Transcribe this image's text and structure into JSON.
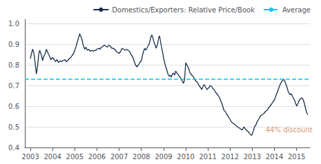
{
  "chart_data": {
    "type": "line",
    "title": "",
    "grid": true,
    "legend": "upper right",
    "xlim": [
      2002.75,
      2015.6
    ],
    "xticks": [
      2003,
      2004,
      2005,
      2006,
      2007,
      2008,
      2009,
      2010,
      2011,
      2012,
      2013,
      2014,
      2015
    ],
    "ylim": [
      0.4,
      1.02
    ],
    "yticks": [
      0.4,
      0.5,
      0.6,
      0.7,
      0.8,
      0.9,
      {
        "value": 1.0,
        "label": "1.0"
      }
    ],
    "x": [
      2003.0,
      2003.05,
      2003.1,
      2003.15,
      2003.2,
      2003.27,
      2003.33,
      2003.38,
      2003.42,
      2003.5,
      2003.55,
      2003.6,
      2003.67,
      2003.72,
      2003.8,
      2003.87,
      2003.92,
      2004.0,
      2004.07,
      2004.13,
      2004.2,
      2004.27,
      2004.33,
      2004.4,
      2004.47,
      2004.55,
      2004.62,
      2004.68,
      2004.75,
      2004.82,
      2004.88,
      2004.95,
      2005.0,
      2005.05,
      2005.1,
      2005.17,
      2005.22,
      2005.28,
      2005.33,
      2005.38,
      2005.45,
      2005.5,
      2005.57,
      2005.63,
      2005.7,
      2005.77,
      2005.83,
      2005.9,
      2005.95,
      2006.0,
      2006.07,
      2006.13,
      2006.2,
      2006.27,
      2006.33,
      2006.4,
      2006.47,
      2006.53,
      2006.6,
      2006.67,
      2006.73,
      2006.8,
      2006.87,
      2006.93,
      2007.0,
      2007.07,
      2007.13,
      2007.2,
      2007.27,
      2007.33,
      2007.4,
      2007.47,
      2007.53,
      2007.6,
      2007.67,
      2007.73,
      2007.8,
      2007.87,
      2007.93,
      2008.0,
      2008.05,
      2008.1,
      2008.15,
      2008.2,
      2008.27,
      2008.33,
      2008.38,
      2008.42,
      2008.47,
      2008.52,
      2008.57,
      2008.62,
      2008.67,
      2008.73,
      2008.78,
      2008.82,
      2008.87,
      2008.92,
      2008.97,
      2009.0,
      2009.05,
      2009.1,
      2009.15,
      2009.2,
      2009.25,
      2009.3,
      2009.35,
      2009.4,
      2009.45,
      2009.5,
      2009.55,
      2009.6,
      2009.65,
      2009.7,
      2009.75,
      2009.8,
      2009.85,
      2009.9,
      2009.95,
      2010.0,
      2010.05,
      2010.1,
      2010.15,
      2010.2,
      2010.27,
      2010.33,
      2010.4,
      2010.47,
      2010.53,
      2010.6,
      2010.67,
      2010.72,
      2010.78,
      2010.83,
      2010.88,
      2010.93,
      2010.97,
      2011.0,
      2011.05,
      2011.1,
      2011.17,
      2011.22,
      2011.28,
      2011.33,
      2011.4,
      2011.47,
      2011.53,
      2011.6,
      2011.67,
      2011.72,
      2011.78,
      2011.83,
      2011.88,
      2011.93,
      2011.97,
      2012.0,
      2012.05,
      2012.1,
      2012.17,
      2012.22,
      2012.28,
      2012.33,
      2012.4,
      2012.47,
      2012.53,
      2012.58,
      2012.63,
      2012.68,
      2012.73,
      2012.78,
      2012.83,
      2012.88,
      2012.93,
      2012.97,
      2013.0,
      2013.05,
      2013.1,
      2013.17,
      2013.22,
      2013.28,
      2013.33,
      2013.4,
      2013.47,
      2013.53,
      2013.6,
      2013.67,
      2013.73,
      2013.8,
      2013.87,
      2013.93,
      2014.0,
      2014.05,
      2014.1,
      2014.17,
      2014.22,
      2014.28,
      2014.33,
      2014.38,
      2014.42,
      2014.47,
      2014.52,
      2014.57,
      2014.62,
      2014.67,
      2014.72,
      2014.75,
      2014.78,
      2014.82,
      2014.87,
      2014.92,
      2014.95,
      2015.0,
      2015.05,
      2015.1,
      2015.17,
      2015.22,
      2015.28,
      2015.33,
      2015.38,
      2015.42,
      2015.47,
      2015.5
    ],
    "series": [
      {
        "name": "Domestics/Exporters: Relative Price/Book",
        "color": "#1a2e4a",
        "line_style": "solid",
        "values": [
          0.83,
          0.855,
          0.875,
          0.86,
          0.82,
          0.755,
          0.8,
          0.855,
          0.87,
          0.845,
          0.82,
          0.84,
          0.855,
          0.875,
          0.855,
          0.84,
          0.825,
          0.835,
          0.825,
          0.815,
          0.825,
          0.81,
          0.82,
          0.815,
          0.82,
          0.825,
          0.815,
          0.82,
          0.83,
          0.835,
          0.845,
          0.855,
          0.87,
          0.885,
          0.905,
          0.93,
          0.95,
          0.935,
          0.92,
          0.895,
          0.875,
          0.885,
          0.87,
          0.875,
          0.865,
          0.87,
          0.865,
          0.87,
          0.87,
          0.875,
          0.88,
          0.875,
          0.885,
          0.89,
          0.895,
          0.89,
          0.885,
          0.895,
          0.89,
          0.88,
          0.88,
          0.875,
          0.865,
          0.86,
          0.855,
          0.865,
          0.88,
          0.875,
          0.87,
          0.875,
          0.87,
          0.865,
          0.85,
          0.84,
          0.82,
          0.8,
          0.79,
          0.8,
          0.81,
          0.82,
          0.845,
          0.865,
          0.88,
          0.87,
          0.885,
          0.895,
          0.91,
          0.93,
          0.945,
          0.93,
          0.91,
          0.895,
          0.88,
          0.9,
          0.93,
          0.94,
          0.91,
          0.88,
          0.855,
          0.835,
          0.81,
          0.79,
          0.775,
          0.755,
          0.745,
          0.75,
          0.74,
          0.755,
          0.76,
          0.75,
          0.77,
          0.76,
          0.755,
          0.745,
          0.74,
          0.73,
          0.72,
          0.71,
          0.73,
          0.81,
          0.8,
          0.79,
          0.775,
          0.76,
          0.75,
          0.745,
          0.73,
          0.72,
          0.715,
          0.7,
          0.69,
          0.68,
          0.695,
          0.705,
          0.695,
          0.685,
          0.68,
          0.685,
          0.69,
          0.7,
          0.695,
          0.685,
          0.68,
          0.67,
          0.66,
          0.65,
          0.64,
          0.62,
          0.6,
          0.58,
          0.575,
          0.565,
          0.555,
          0.548,
          0.54,
          0.535,
          0.525,
          0.52,
          0.515,
          0.51,
          0.505,
          0.5,
          0.495,
          0.49,
          0.485,
          0.49,
          0.5,
          0.49,
          0.485,
          0.48,
          0.475,
          0.468,
          0.462,
          0.458,
          0.465,
          0.48,
          0.5,
          0.51,
          0.525,
          0.535,
          0.545,
          0.555,
          0.56,
          0.565,
          0.575,
          0.58,
          0.59,
          0.6,
          0.61,
          0.62,
          0.63,
          0.645,
          0.66,
          0.68,
          0.695,
          0.71,
          0.72,
          0.725,
          0.73,
          0.72,
          0.705,
          0.69,
          0.67,
          0.66,
          0.655,
          0.66,
          0.655,
          0.645,
          0.635,
          0.625,
          0.615,
          0.6,
          0.61,
          0.625,
          0.635,
          0.64,
          0.635,
          0.62,
          0.6,
          0.58,
          0.565,
          0.558
        ]
      }
    ],
    "average": {
      "name": "Average",
      "value": 0.735,
      "color": "#00c8f0",
      "line_style": "dashed"
    },
    "annotations": [
      {
        "text": "44% discount",
        "x": 2013.6,
        "y": 0.485,
        "color": "#c87941"
      }
    ]
  }
}
